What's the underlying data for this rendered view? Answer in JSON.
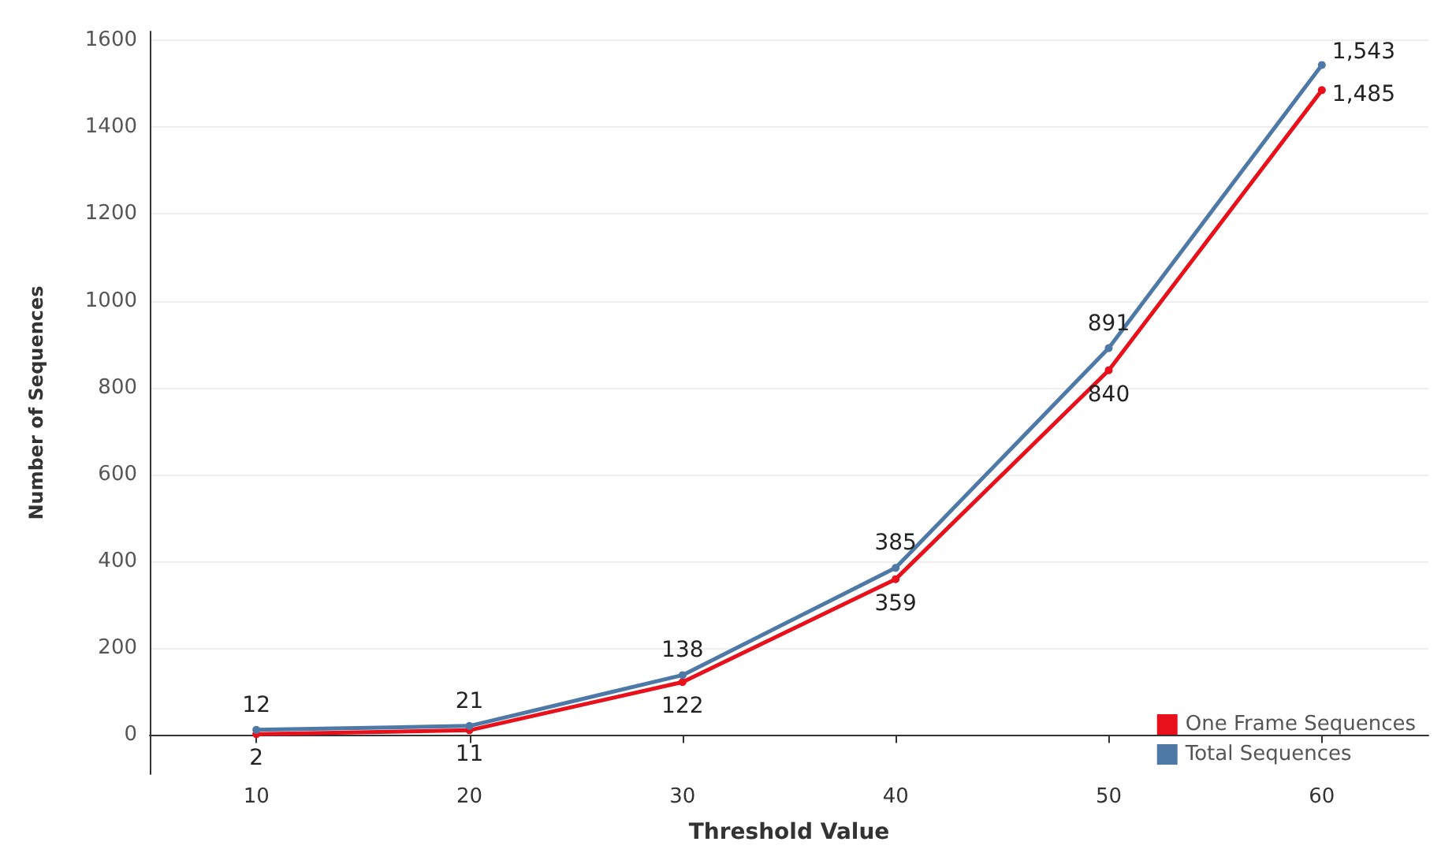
{
  "chart_data": {
    "type": "line",
    "xlabel": "Threshold Value",
    "ylabel": "Number of Sequences",
    "x": [
      10,
      20,
      30,
      40,
      50,
      60
    ],
    "series": [
      {
        "name": "One Frame Sequences",
        "color": "#e8101a",
        "values": [
          2,
          11,
          122,
          359,
          840,
          1485
        ],
        "value_labels": [
          "2",
          "11",
          "122",
          "359",
          "840",
          "1,485"
        ]
      },
      {
        "name": "Total Sequences",
        "color": "#4e79a7",
        "values": [
          12,
          21,
          138,
          385,
          891,
          1543
        ],
        "value_labels": [
          "12",
          "21",
          "138",
          "385",
          "891",
          "1,543"
        ]
      }
    ],
    "xlim": [
      5,
      65
    ],
    "xticks": [
      10,
      20,
      30,
      40,
      50,
      60
    ],
    "ylim": [
      -90,
      1620
    ],
    "yticks": [
      0,
      200,
      400,
      600,
      800,
      1000,
      1200,
      1400,
      1600
    ],
    "grid": "y",
    "legend": "bottom right",
    "marker": "circle",
    "line_style": "solid"
  }
}
